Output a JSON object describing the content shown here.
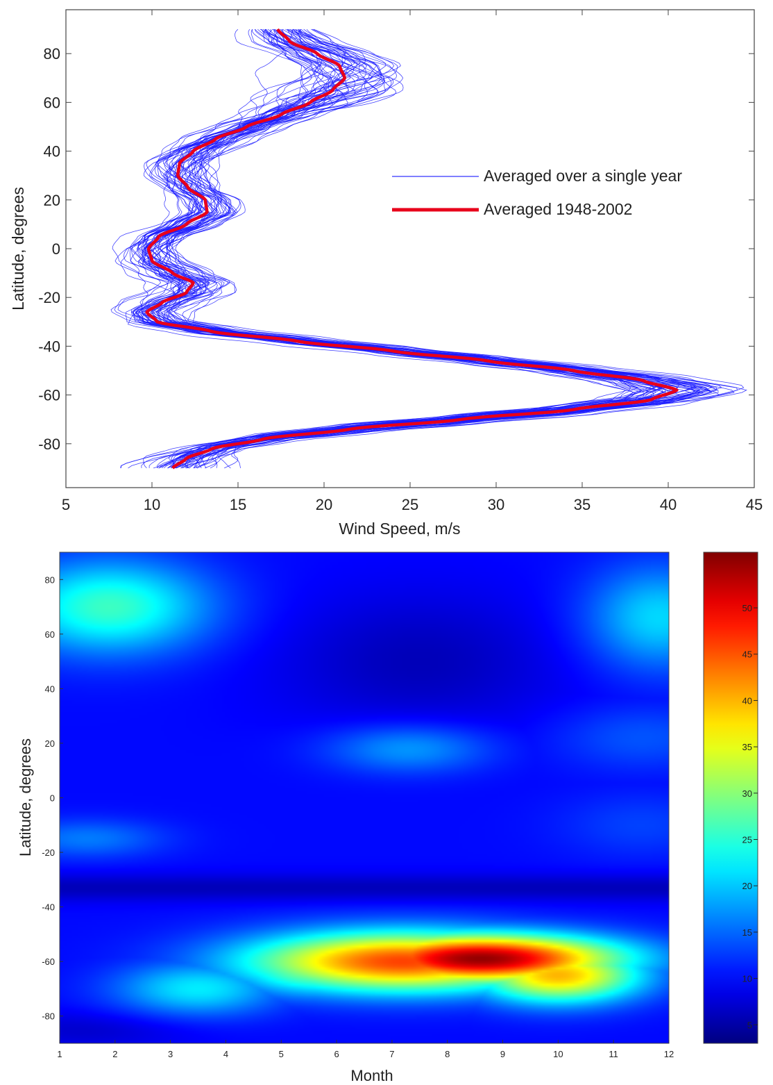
{
  "chart_data": [
    {
      "type": "line",
      "xlabel": "Wind Speed, m/s",
      "ylabel": "Latitude, degrees",
      "xlim": [
        5,
        45
      ],
      "ylim": [
        -98,
        98
      ],
      "xticks": [
        5,
        10,
        15,
        20,
        25,
        30,
        35,
        40,
        45
      ],
      "yticks": [
        -80,
        -60,
        -40,
        -20,
        0,
        20,
        40,
        60,
        80
      ],
      "grid": false,
      "legend_position": "right, upper half",
      "series": [
        {
          "name": "Averaged over a single year",
          "color": "#0000ff",
          "count": 55,
          "note_values": "spread of about ±3 m/s around the long-term mean profile, widest near 70°N and 60°S"
        },
        {
          "name": "Averaged 1948-2002",
          "color": "#e8001a",
          "points": [
            {
              "lat": 90,
              "speed": 17.3
            },
            {
              "lat": 85,
              "speed": 18.0
            },
            {
              "lat": 80,
              "speed": 19.6
            },
            {
              "lat": 75,
              "speed": 20.9
            },
            {
              "lat": 70,
              "speed": 21.2
            },
            {
              "lat": 65,
              "speed": 20.5
            },
            {
              "lat": 60,
              "speed": 19.2
            },
            {
              "lat": 55,
              "speed": 17.5
            },
            {
              "lat": 50,
              "speed": 15.5
            },
            {
              "lat": 45,
              "speed": 13.7
            },
            {
              "lat": 40,
              "speed": 12.4
            },
            {
              "lat": 35,
              "speed": 11.6
            },
            {
              "lat": 30,
              "speed": 11.5
            },
            {
              "lat": 25,
              "speed": 12.1
            },
            {
              "lat": 20,
              "speed": 13.1
            },
            {
              "lat": 15,
              "speed": 13.2
            },
            {
              "lat": 10,
              "speed": 12.0
            },
            {
              "lat": 5,
              "speed": 10.4
            },
            {
              "lat": 0,
              "speed": 9.8
            },
            {
              "lat": -5,
              "speed": 10.0
            },
            {
              "lat": -10,
              "speed": 11.2
            },
            {
              "lat": -14,
              "speed": 12.4
            },
            {
              "lat": -18,
              "speed": 12.0
            },
            {
              "lat": -22,
              "speed": 10.6
            },
            {
              "lat": -26,
              "speed": 9.7
            },
            {
              "lat": -30,
              "speed": 10.3
            },
            {
              "lat": -34,
              "speed": 13.5
            },
            {
              "lat": -38,
              "speed": 18.5
            },
            {
              "lat": -42,
              "speed": 24.0
            },
            {
              "lat": -46,
              "speed": 29.5
            },
            {
              "lat": -50,
              "speed": 34.5
            },
            {
              "lat": -54,
              "speed": 38.5
            },
            {
              "lat": -58,
              "speed": 40.5
            },
            {
              "lat": -62,
              "speed": 39.0
            },
            {
              "lat": -66,
              "speed": 34.5
            },
            {
              "lat": -70,
              "speed": 28.0
            },
            {
              "lat": -74,
              "speed": 21.5
            },
            {
              "lat": -78,
              "speed": 16.5
            },
            {
              "lat": -82,
              "speed": 13.5
            },
            {
              "lat": -86,
              "speed": 12.0
            },
            {
              "lat": -90,
              "speed": 11.2
            }
          ]
        }
      ]
    },
    {
      "type": "heatmap",
      "xlabel": "Month",
      "ylabel": "Latitude, degrees",
      "xlim": [
        1,
        12
      ],
      "ylim": [
        -90,
        90
      ],
      "xticks": [
        1,
        2,
        3,
        4,
        5,
        6,
        7,
        8,
        9,
        10,
        11,
        12
      ],
      "yticks": [
        -80,
        -60,
        -40,
        -20,
        0,
        20,
        40,
        60,
        80
      ],
      "colormap": "jet",
      "colorbar": {
        "position": "right",
        "range": [
          3,
          56
        ],
        "ticks": [
          5,
          10,
          15,
          20,
          25,
          30,
          35,
          40,
          45,
          50
        ]
      },
      "blobs": [
        {
          "month": 8.6,
          "lat": -59,
          "peak": 55,
          "month_halfwidth": 2.5,
          "lat_halfwidth": 9
        },
        {
          "month": 7.2,
          "lat": -60,
          "peak": 46,
          "month_halfwidth": 2.8,
          "lat_halfwidth": 11
        },
        {
          "month": 10.0,
          "lat": -65,
          "peak": 40,
          "month_halfwidth": 1.5,
          "lat_halfwidth": 10
        },
        {
          "month": 5.8,
          "lat": -62,
          "peak": 32,
          "month_halfwidth": 1.7,
          "lat_halfwidth": 10
        },
        {
          "month": 3.5,
          "lat": -70,
          "peak": 22,
          "month_halfwidth": 1.5,
          "lat_halfwidth": 10
        },
        {
          "month": 1.9,
          "lat": 70,
          "peak": 26,
          "month_halfwidth": 1.8,
          "lat_halfwidth": 17
        },
        {
          "month": 11.8,
          "lat": 66,
          "peak": 21,
          "month_halfwidth": 1.3,
          "lat_halfwidth": 19
        },
        {
          "month": 7.3,
          "lat": 18,
          "peak": 18,
          "month_halfwidth": 1.5,
          "lat_halfwidth": 9
        },
        {
          "month": 1.5,
          "lat": -15,
          "peak": 16,
          "month_halfwidth": 1.4,
          "lat_halfwidth": 7
        },
        {
          "month": 11.5,
          "lat": 22,
          "peak": 14,
          "month_halfwidth": 1.6,
          "lat_halfwidth": 12
        },
        {
          "month": 11.5,
          "lat": -10,
          "peak": 13,
          "month_halfwidth": 1.5,
          "lat_halfwidth": 12
        }
      ],
      "background_level": 10
    }
  ]
}
